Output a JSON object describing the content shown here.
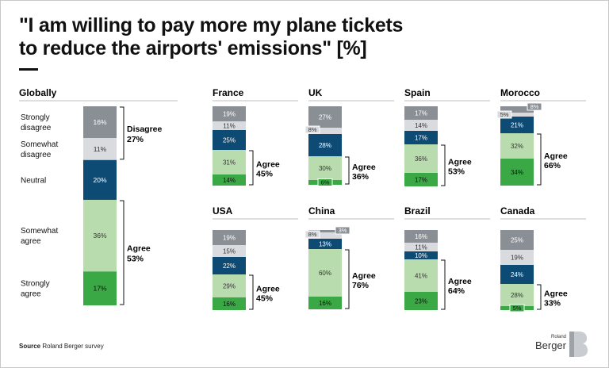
{
  "title": {
    "line1": "\"I am willing to pay more my plane tickets",
    "line2": "to reduce the airports' emissions\" [%]"
  },
  "source": {
    "label": "Source",
    "text": "Roland Berger survey"
  },
  "logo": {
    "top": "Roland",
    "bottom": "Berger"
  },
  "colors": {
    "strongly_disagree": "#8a8f95",
    "somewhat_disagree": "#d9dbde",
    "neutral": "#0d4b75",
    "somewhat_agree": "#b9dcae",
    "strongly_agree": "#3aa844"
  },
  "chart_data": {
    "type": "bar",
    "stacking": "100% stacked",
    "categories_order": [
      "Strongly disagree",
      "Somewhat disagree",
      "Neutral",
      "Somewhat agree",
      "Strongly agree"
    ],
    "global": {
      "name": "Globally",
      "category_labels": [
        [
          "Strongly",
          "disagree"
        ],
        [
          "Somewhat",
          "disagree"
        ],
        [
          "Neutral"
        ],
        [
          "Somewhat",
          "agree"
        ],
        [
          "Strongly",
          "agree"
        ]
      ],
      "values": [
        16,
        11,
        20,
        36,
        17
      ],
      "disagree": {
        "label": "Disagree",
        "value": "27%"
      },
      "agree": {
        "label": "Agree",
        "value": "53%"
      }
    },
    "countries": [
      {
        "name": "France",
        "values": [
          19,
          11,
          25,
          31,
          14
        ],
        "agree": "45%"
      },
      {
        "name": "UK",
        "values": [
          27,
          8,
          28,
          30,
          6
        ],
        "agree": "36%"
      },
      {
        "name": "Spain",
        "values": [
          17,
          14,
          17,
          36,
          17
        ],
        "agree": "53%"
      },
      {
        "name": "Morocco",
        "values": [
          8,
          5,
          21,
          32,
          34
        ],
        "agree": "66%"
      },
      {
        "name": "USA",
        "values": [
          19,
          15,
          22,
          29,
          16
        ],
        "agree": "45%"
      },
      {
        "name": "China",
        "values": [
          3,
          8,
          13,
          60,
          16
        ],
        "agree": "76%"
      },
      {
        "name": "Brazil",
        "values": [
          16,
          11,
          10,
          41,
          23
        ],
        "agree": "64%"
      },
      {
        "name": "Canada",
        "values": [
          25,
          19,
          24,
          28,
          5
        ],
        "agree": "33%"
      }
    ],
    "agree_label": "Agree"
  }
}
